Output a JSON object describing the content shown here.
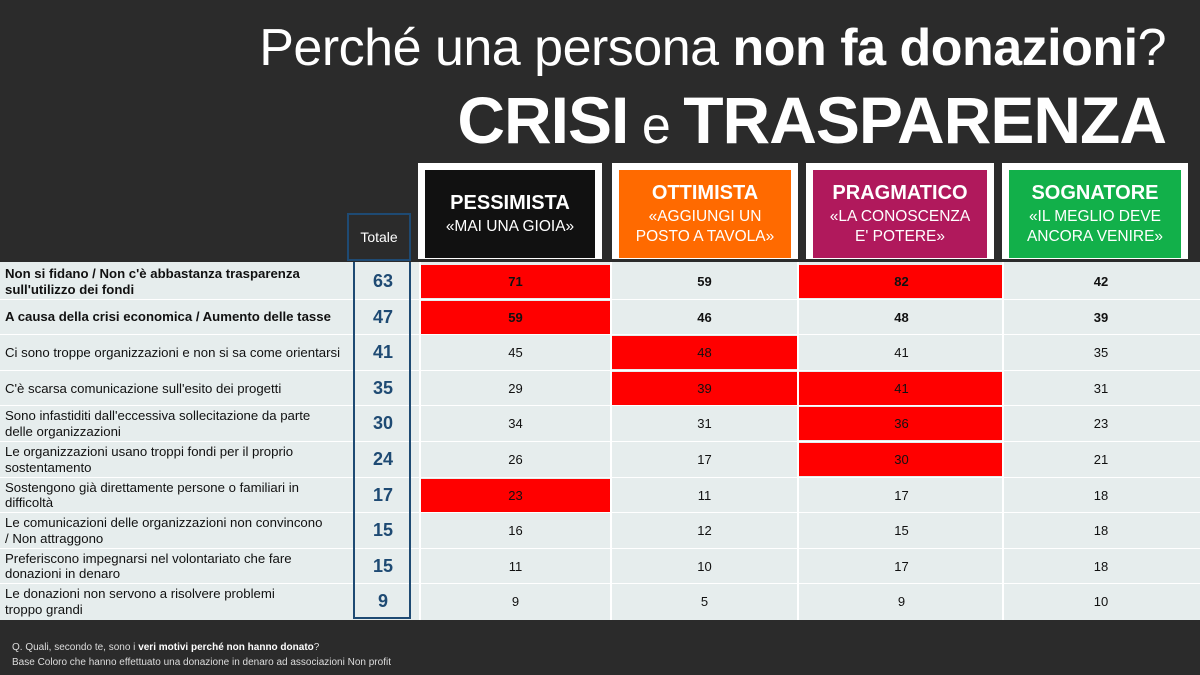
{
  "title": {
    "line1_pre": "Perché una persona ",
    "line1_bold": "non fa donazioni",
    "line1_post": "?",
    "line2_a": "CRISI",
    "line2_e": " e ",
    "line2_b": "TRASPARENZA"
  },
  "totale_label": "Totale",
  "segments": [
    {
      "name": "PESSIMISTA",
      "motto": "«MAI UNA GIOIA»",
      "color": "#111111"
    },
    {
      "name": "OTTIMISTA",
      "motto": "«AGGIUNGI UN\nPOSTO A TAVOLA»",
      "color": "#ff6a00"
    },
    {
      "name": "PRAGMATICO",
      "motto": "«LA CONOSCENZA\nE' POTERE»",
      "color": "#b0195c"
    },
    {
      "name": "SOGNATORE",
      "motto": "«IL MEGLIO DEVE\nANCORA VENIRE»",
      "color": "#12b04a"
    }
  ],
  "chart_data": {
    "type": "table",
    "columns": [
      "Totale",
      "PESSIMISTA",
      "OTTIMISTA",
      "PRAGMATICO",
      "SOGNATORE"
    ],
    "highlight_color": "#ff0000",
    "rows": [
      {
        "label": "Non si fidano / Non c'è abbastanza trasparenza\n sull'utilizzo dei fondi",
        "bold": true,
        "totale": 63,
        "values": [
          71,
          59,
          82,
          42
        ],
        "highlight": [
          true,
          false,
          true,
          false
        ]
      },
      {
        "label": "A causa della crisi economica / Aumento delle tasse",
        "bold": true,
        "totale": 47,
        "values": [
          59,
          46,
          48,
          39
        ],
        "highlight": [
          true,
          false,
          false,
          false
        ]
      },
      {
        "label": "Ci sono troppe organizzazioni e non si sa come orientarsi",
        "bold": false,
        "totale": 41,
        "values": [
          45,
          48,
          41,
          35
        ],
        "highlight": [
          false,
          true,
          false,
          false
        ]
      },
      {
        "label": "C'è scarsa comunicazione sull'esito dei progetti",
        "bold": false,
        "totale": 35,
        "values": [
          29,
          39,
          41,
          31
        ],
        "highlight": [
          false,
          true,
          true,
          false
        ]
      },
      {
        "label": "Sono infastiditi dall'eccessiva sollecitazione da parte\ndelle organizzazioni",
        "bold": false,
        "totale": 30,
        "values": [
          34,
          31,
          36,
          23
        ],
        "highlight": [
          false,
          false,
          true,
          false
        ]
      },
      {
        "label": "Le organizzazioni usano troppi fondi per il proprio\nsostentamento",
        "bold": false,
        "totale": 24,
        "values": [
          26,
          17,
          30,
          21
        ],
        "highlight": [
          false,
          false,
          true,
          false
        ]
      },
      {
        "label": "Sostengono già direttamente persone o familiari in\ndifficoltà",
        "bold": false,
        "totale": 17,
        "values": [
          23,
          11,
          17,
          18
        ],
        "highlight": [
          true,
          false,
          false,
          false
        ]
      },
      {
        "label": "Le comunicazioni delle organizzazioni non convincono\n/ Non attraggono",
        "bold": false,
        "totale": 15,
        "values": [
          16,
          12,
          15,
          18
        ],
        "highlight": [
          false,
          false,
          false,
          false
        ]
      },
      {
        "label": "Preferiscono impegnarsi nel volontariato che fare\n donazioni in denaro",
        "bold": false,
        "totale": 15,
        "values": [
          11,
          10,
          17,
          18
        ],
        "highlight": [
          false,
          false,
          false,
          false
        ]
      },
      {
        "label": "Le donazioni non servono a risolvere problemi\ntroppo grandi",
        "bold": false,
        "totale": 9,
        "values": [
          9,
          5,
          9,
          10
        ],
        "highlight": [
          false,
          false,
          false,
          false
        ]
      }
    ]
  },
  "footer": {
    "q_pre": "Q. Quali, secondo te, sono i ",
    "q_bold": "veri motivi perché non hanno donato",
    "q_post": "?",
    "base": "Base Coloro che hanno effettuato una donazione in denaro ad associazioni Non profit"
  }
}
